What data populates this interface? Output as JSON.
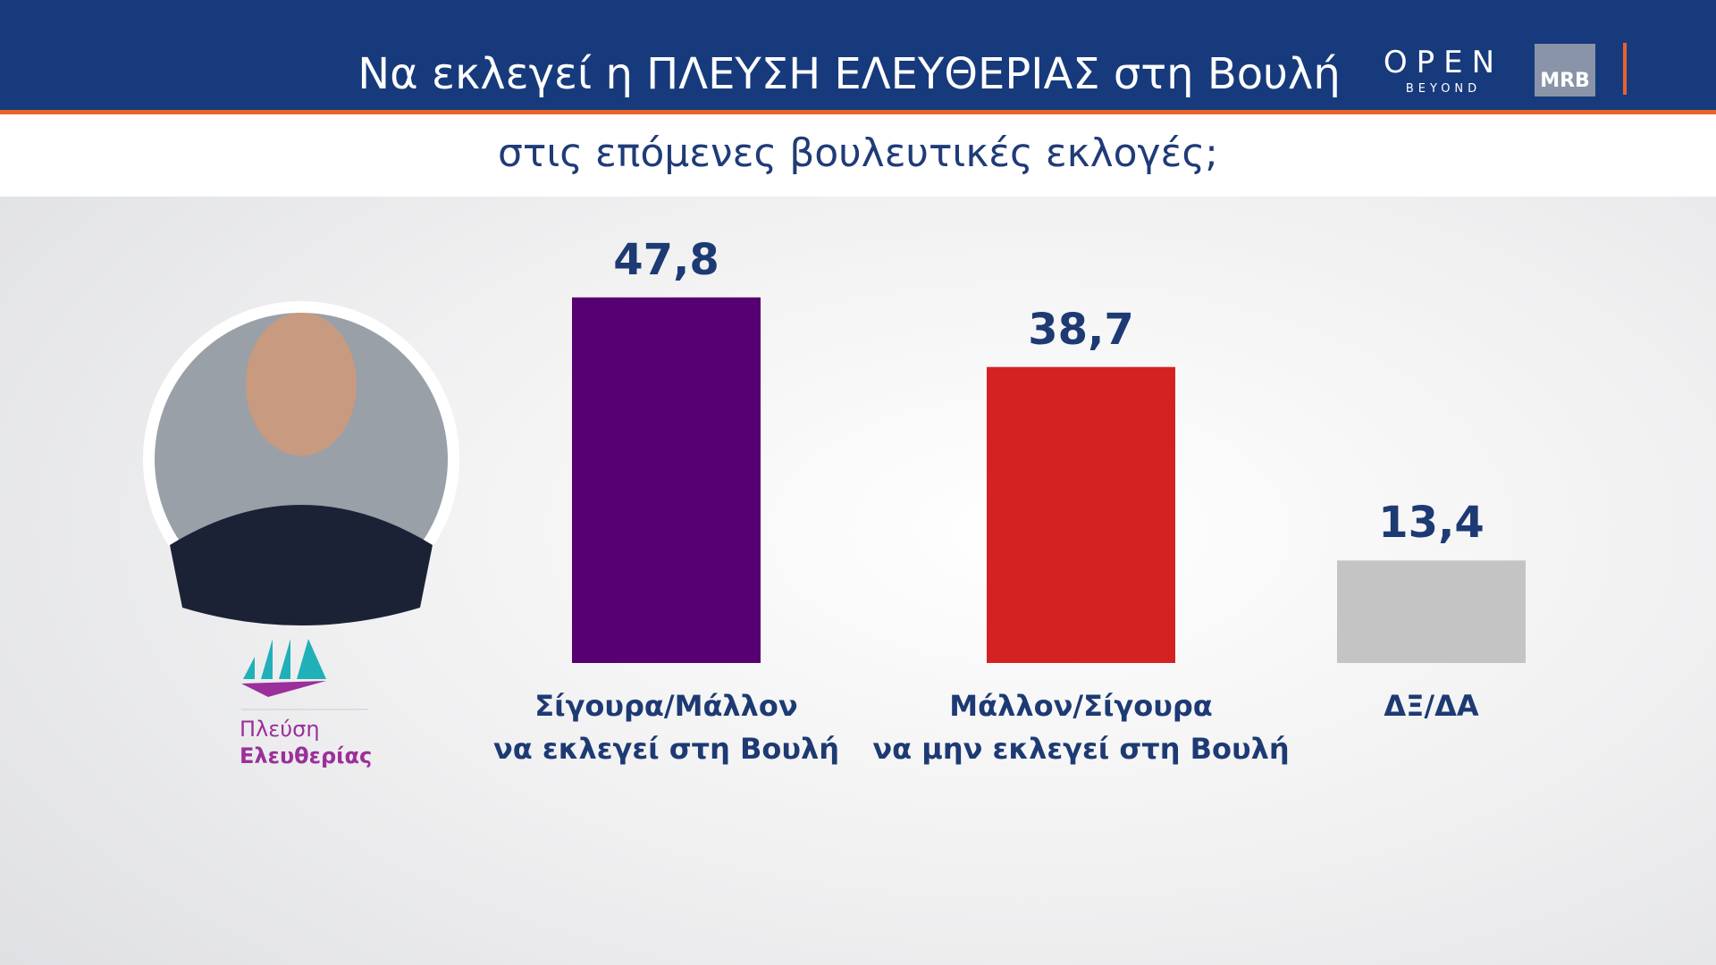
{
  "chart_data": {
    "type": "bar",
    "title": "Να εκλεγεί η ΠΛΕΥΣΗ ΕΛΕΥΘΕΡΙΑΣ στη Βουλή",
    "subtitle": "στις επόμενες βουλευτικές εκλογές;",
    "categories": [
      "Σίγουρα/Μάλλον\nνα εκλεγεί στη Βουλή",
      "Μάλλον/Σίγουρα\nνα μην εκλεγεί στη Βουλή",
      "ΔΞ/ΔΑ"
    ],
    "values": [
      47.8,
      38.7,
      13.4
    ],
    "value_labels": [
      "47,8",
      "38,7",
      "13,4"
    ],
    "colors": [
      "#560071",
      "#d42222",
      "#c4c4c4"
    ]
  },
  "party_logo": {
    "line1": "Πλεύση",
    "line2": "Ελευθερίας"
  },
  "channel_logo": {
    "name": "OPEN",
    "tagline": "BEYOND"
  },
  "pollster_logo": "MRB"
}
